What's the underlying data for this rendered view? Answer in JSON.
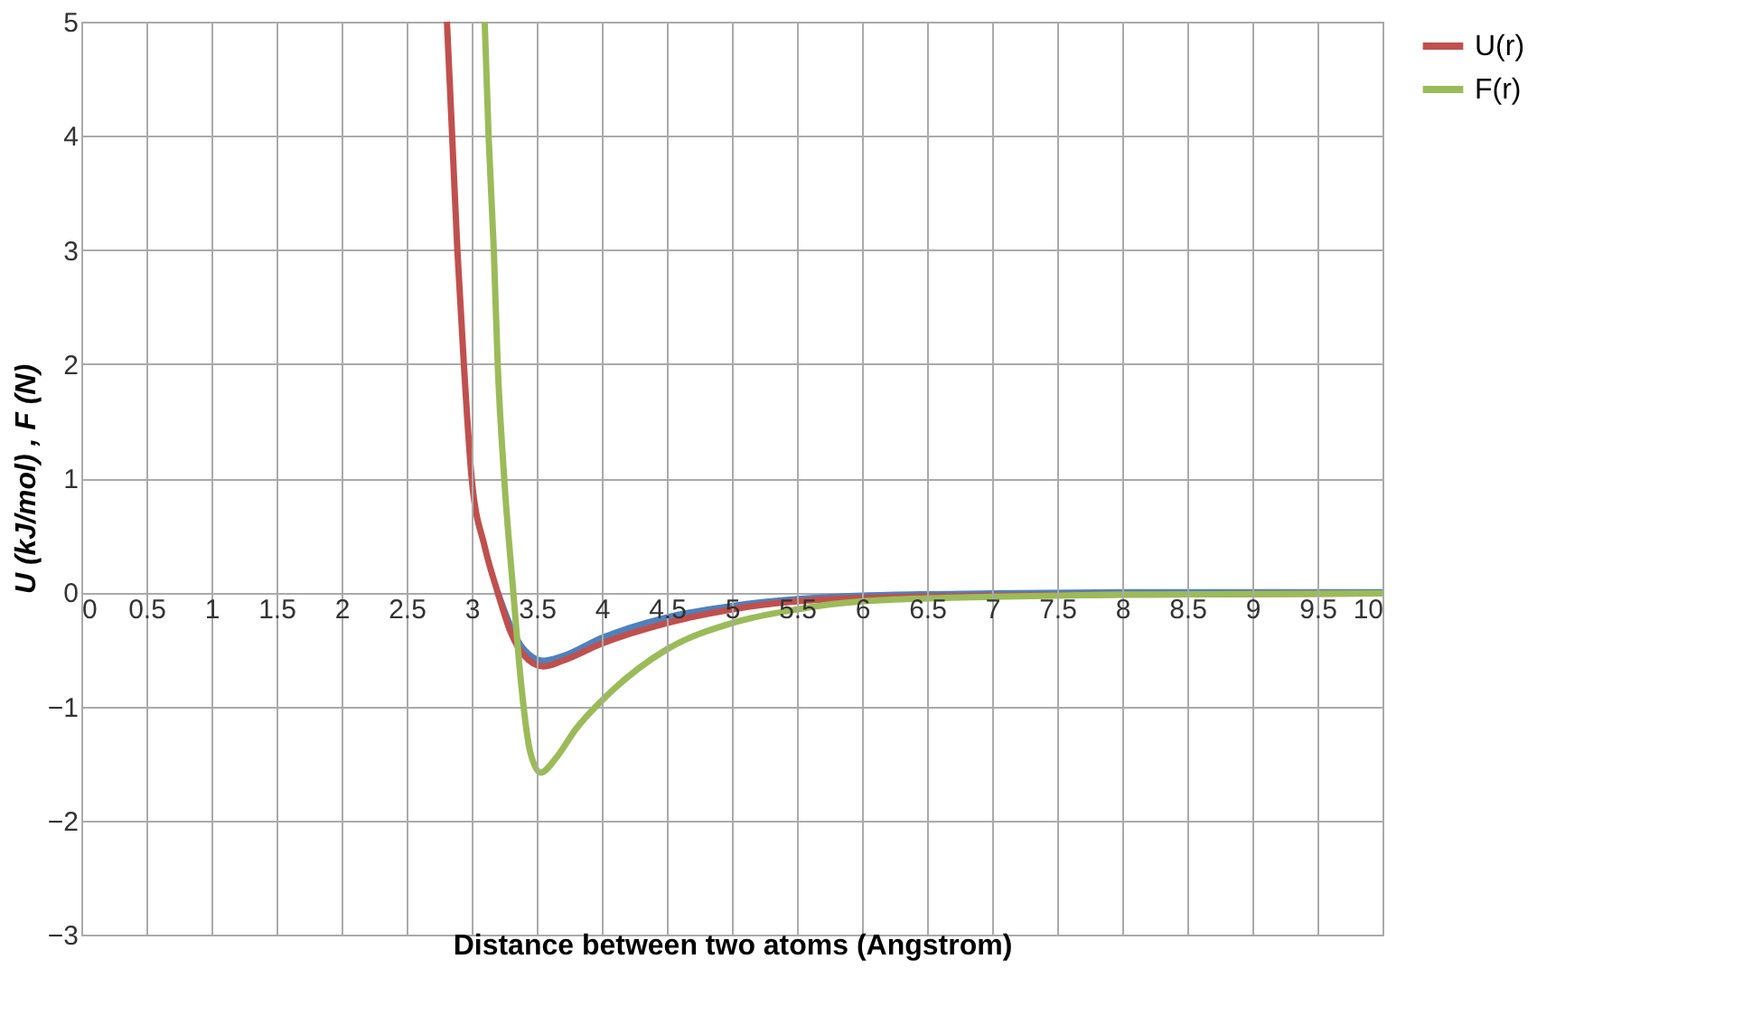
{
  "chart_data": {
    "type": "line",
    "xlabel": "Distance between two atoms (Angstrom)",
    "ylabel": "U (kJ/mol) , F (N)",
    "xlim": [
      0,
      10
    ],
    "xticks": [
      {
        "value": 0,
        "label": "0"
      },
      {
        "value": 0.5,
        "label": "0.5"
      },
      1,
      1.5,
      2,
      2.5,
      3,
      3.5,
      4,
      4.5,
      5,
      5.5,
      6,
      6.5,
      7,
      7.5,
      8,
      8.5,
      9,
      9.5,
      10
    ],
    "ylim": [
      -3,
      5
    ],
    "yticks": [
      -3,
      -2,
      -1,
      0,
      1,
      2,
      3,
      4,
      5
    ],
    "grid": true,
    "legend": "right",
    "line_style": "solid",
    "marker": "none",
    "series": [
      {
        "color": "#4f81bd",
        "x": [
          3.2,
          3.3,
          3.4,
          3.55,
          3.7,
          4.0,
          4.5,
          5.0,
          5.5,
          6.0,
          7.0,
          8.0,
          10.0
        ],
        "values": [
          0,
          -0.3,
          -0.5,
          -0.6,
          -0.56,
          -0.4,
          -0.22,
          -0.12,
          -0.06,
          -0.03,
          -0.01,
          0,
          0
        ]
      },
      {
        "name": "U(r)",
        "color": "#c0504d",
        "x": [
          2.81,
          2.85,
          2.89,
          2.94,
          3.0,
          3.1,
          3.2,
          3.3,
          3.4,
          3.55,
          3.7,
          4.0,
          4.5,
          5.0,
          5.5,
          6.0,
          7.0,
          8.0,
          10.0
        ],
        "values": [
          5,
          4,
          3,
          2,
          1,
          0.4,
          0,
          -0.35,
          -0.55,
          -0.65,
          -0.6,
          -0.45,
          -0.27,
          -0.15,
          -0.08,
          -0.05,
          -0.03,
          -0.02,
          -0.01
        ]
      },
      {
        "name": "F(r)",
        "color": "#9bbb59",
        "x": [
          3.1,
          3.13,
          3.17,
          3.2,
          3.25,
          3.32,
          3.38,
          3.45,
          3.53,
          3.65,
          3.8,
          4.0,
          4.5,
          5.0,
          5.5,
          6.0,
          7.0,
          8.0,
          10.0
        ],
        "values": [
          5,
          4,
          3,
          2,
          1,
          0,
          -0.8,
          -1.4,
          -1.58,
          -1.45,
          -1.2,
          -0.95,
          -0.5,
          -0.27,
          -0.15,
          -0.08,
          -0.04,
          -0.02,
          -0.01
        ]
      }
    ]
  }
}
